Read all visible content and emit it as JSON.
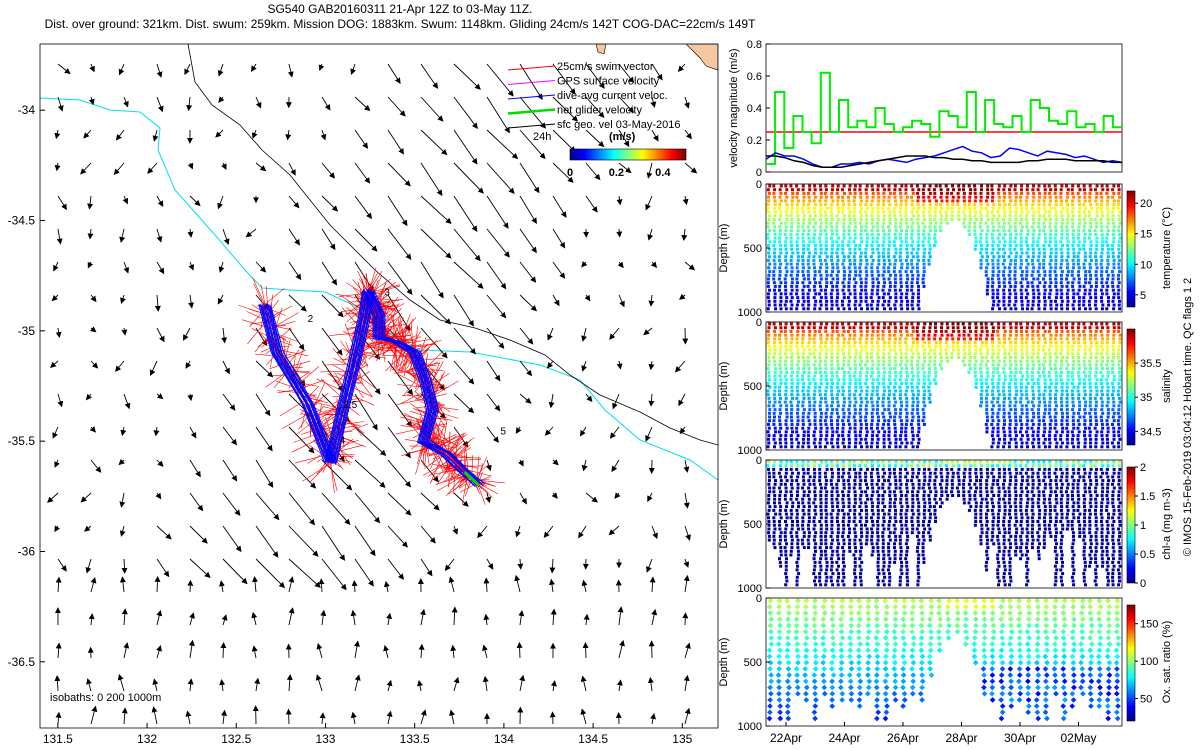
{
  "header": {
    "line1": "SG540 GAB20160311 21-Apr 12Z to 03-May 11Z.",
    "line2": "Dist. over ground: 321km. Dist. swum: 259km. Mission DOG: 1883km. Swum: 1148km. Gliding 24cm/s 142T COG-DAC=22cm/s 149T"
  },
  "credit": "© IMOS 15-Feb-2019 03:04:12 Hobart time. QC flags 1  2",
  "colors": {
    "swim": "#ff0000",
    "gps": "#ff00ff",
    "dac": "#0000ff",
    "net": "#00dd00",
    "sfc": "#000000",
    "isobath": "#00e0f0"
  },
  "chart_data": [
    {
      "id": "map",
      "type": "scatter",
      "title": "",
      "xlabel": "",
      "ylabel": "",
      "xlim": [
        131.4,
        135.2
      ],
      "ylim": [
        -36.8,
        -33.7
      ],
      "xticks": [
        "131.5",
        "132",
        "132.5",
        "133",
        "133.5",
        "134",
        "134.5",
        "135"
      ],
      "yticks": [
        "-34",
        "-34.5",
        "-35",
        "-35.5",
        "-36",
        "-36.5"
      ],
      "legend": {
        "position": "top-right",
        "entries": [
          "25cm/s swim vector",
          "GPS surface velocity",
          "dive-avg current veloc.",
          "net glider velocity",
          "sfc geo. vel 03-May-2016"
        ],
        "scale_label": "24h",
        "colorbar_title": "(m/s)",
        "colorbar_ticks": [
          "0",
          "0.2",
          "0.4"
        ],
        "colorbar_range": [
          0,
          0.5
        ]
      },
      "isobath_label": "isobaths: 0   200  1000m",
      "track_labels": [
        {
          "text": "2",
          "lon": 132.9,
          "lat": -34.96
        },
        {
          "text": "2.5",
          "lon": 133.1,
          "lat": -35.35
        },
        {
          "text": "4",
          "lon": 133.08,
          "lat": -35.51
        },
        {
          "text": "3",
          "lon": 133.33,
          "lat": -34.84
        },
        {
          "text": "5",
          "lon": 133.98,
          "lat": -35.47
        }
      ],
      "track": [
        {
          "lon": 132.66,
          "lat": -34.88
        },
        {
          "lon": 132.73,
          "lat": -35.1
        },
        {
          "lon": 132.9,
          "lat": -35.33
        },
        {
          "lon": 133.03,
          "lat": -35.6
        },
        {
          "lon": 133.09,
          "lat": -35.38
        },
        {
          "lon": 133.16,
          "lat": -35.15
        },
        {
          "lon": 133.22,
          "lat": -34.93
        },
        {
          "lon": 133.24,
          "lat": -34.82
        },
        {
          "lon": 133.3,
          "lat": -34.93
        },
        {
          "lon": 133.3,
          "lat": -35.03
        },
        {
          "lon": 133.4,
          "lat": -35.05
        },
        {
          "lon": 133.5,
          "lat": -35.1
        },
        {
          "lon": 133.56,
          "lat": -35.22
        },
        {
          "lon": 133.6,
          "lat": -35.35
        },
        {
          "lon": 133.55,
          "lat": -35.5
        },
        {
          "lon": 133.68,
          "lat": -35.56
        },
        {
          "lon": 133.78,
          "lat": -35.64
        },
        {
          "lon": 133.86,
          "lat": -35.7
        }
      ]
    },
    {
      "id": "velocity",
      "type": "line",
      "title": "",
      "xlabel": "",
      "ylabel": "velocity magnitude (m/s)",
      "ylim": [
        0,
        0.8
      ],
      "yticks": [
        "0",
        "0.2",
        "0.4",
        "0.6",
        "0.8"
      ],
      "series": [
        {
          "color": "#ff0000",
          "values": [
            0.25,
            0.25
          ]
        },
        {
          "color": "#00ee00",
          "values": [
            0.05,
            0.5,
            0.15,
            0.35,
            0.25,
            0.18,
            0.62,
            0.25,
            0.45,
            0.28,
            0.32,
            0.28,
            0.4,
            0.3,
            0.25,
            0.28,
            0.32,
            0.3,
            0.22,
            0.38,
            0.35,
            0.28,
            0.5,
            0.25,
            0.45,
            0.3,
            0.28,
            0.35,
            0.25,
            0.45,
            0.4,
            0.32,
            0.3,
            0.38,
            0.28,
            0.3,
            0.25,
            0.35,
            0.28
          ]
        },
        {
          "color": "#0000ff",
          "values": [
            0.08,
            0.12,
            0.1,
            0.1,
            0.08,
            0.05,
            0.03,
            0.03,
            0.05,
            0.05,
            0.06,
            0.05,
            0.07,
            0.08,
            0.07,
            0.06,
            0.08,
            0.09,
            0.1,
            0.12,
            0.14,
            0.16,
            0.13,
            0.12,
            0.09,
            0.1,
            0.15,
            0.14,
            0.12,
            0.1,
            0.13,
            0.12,
            0.11,
            0.09,
            0.1,
            0.08,
            0.06,
            0.07,
            0.06
          ]
        },
        {
          "color": "#000000",
          "values": [
            0.1,
            0.1,
            0.09,
            0.07,
            0.06,
            0.04,
            0.03,
            0.03,
            0.03,
            0.04,
            0.05,
            0.06,
            0.07,
            0.08,
            0.09,
            0.1,
            0.1,
            0.1,
            0.09,
            0.09,
            0.08,
            0.08,
            0.07,
            0.07,
            0.06,
            0.06,
            0.06,
            0.06,
            0.07,
            0.07,
            0.08,
            0.08,
            0.08,
            0.07,
            0.07,
            0.07,
            0.07,
            0.06,
            0.06
          ]
        }
      ]
    },
    {
      "id": "temperature",
      "type": "heatmap",
      "xlabel": "",
      "ylabel": "Depth (m)",
      "colorbar_label": "temperature (°C)",
      "colorbar_ticks": [
        "5",
        "10",
        "15",
        "20"
      ],
      "clim": [
        3,
        22
      ],
      "ylim": [
        0,
        1000
      ],
      "yticks": [
        "0",
        "500",
        "1000"
      ]
    },
    {
      "id": "salinity",
      "type": "heatmap",
      "xlabel": "",
      "ylabel": "Depth (m)",
      "colorbar_label": "salinity",
      "colorbar_ticks": [
        "34.5",
        "35",
        "35.5"
      ],
      "clim": [
        34.3,
        36.0
      ],
      "ylim": [
        0,
        1000
      ],
      "yticks": [
        "0",
        "500",
        "1000"
      ]
    },
    {
      "id": "chla",
      "type": "heatmap",
      "xlabel": "",
      "ylabel": "Depth (m)",
      "colorbar_label": "chl-a (mg m-3)",
      "colorbar_ticks": [
        "0",
        "0.5",
        "1",
        "1.5",
        "2"
      ],
      "clim": [
        0,
        2
      ],
      "ylim": [
        0,
        1000
      ],
      "yticks": [
        "0",
        "500",
        "1000"
      ]
    },
    {
      "id": "oxygen",
      "type": "heatmap",
      "ylabel": "Depth (m)",
      "colorbar_label": "Ox. sat. ratio (%)",
      "colorbar_ticks": [
        "50",
        "100",
        "150"
      ],
      "clim": [
        20,
        175
      ],
      "ylim": [
        0,
        1000
      ],
      "yticks": [
        "0",
        "500",
        "1000"
      ],
      "xticks": [
        "22Apr",
        "24Apr",
        "26Apr",
        "28Apr",
        "30Apr",
        "02May"
      ]
    }
  ]
}
